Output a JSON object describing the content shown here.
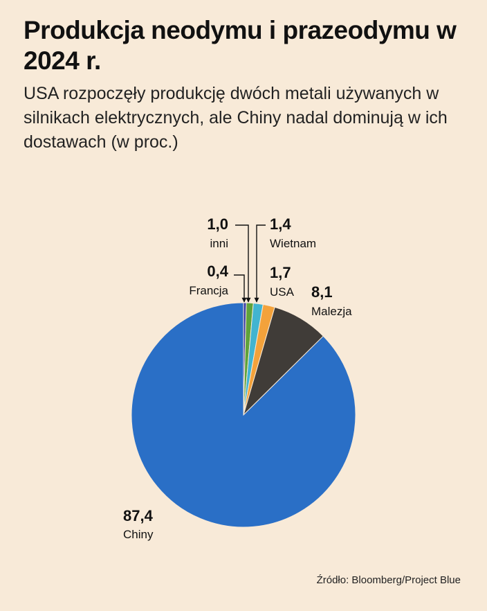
{
  "title": "Produkcja neodymu i prazeodymu w 2024 r.",
  "subtitle": "USA rozpoczęły produkcję dwóch metali używanych w silnikach elektrycznych, ale Chiny nadal dominują w ich dostawach (w proc.)",
  "source": "Źródło: Bloomberg/Project Blue",
  "chart_data": {
    "type": "pie",
    "title": "Produkcja neodymu i prazeodymu w 2024 r.",
    "subtitle": "USA rozpoczęły produkcję dwóch metali używanych w silnikach elektrycznych, ale Chiny nadal dominują w ich dostawach (w proc.)",
    "unit": "proc.",
    "start": "top, clockwise",
    "slices": [
      {
        "label": "Francja",
        "value": 0.4,
        "value_label": "0,4",
        "color": "#3b3fa8"
      },
      {
        "label": "inni",
        "value": 1.0,
        "value_label": "1,0",
        "color": "#5fa33a"
      },
      {
        "label": "Wietnam",
        "value": 1.4,
        "value_label": "1,4",
        "color": "#42b4d0"
      },
      {
        "label": "USA",
        "value": 1.7,
        "value_label": "1,7",
        "color": "#f3a23b"
      },
      {
        "label": "Malezja",
        "value": 8.1,
        "value_label": "8,1",
        "color": "#403c38"
      },
      {
        "label": "Chiny",
        "value": 87.4,
        "value_label": "87,4",
        "color": "#2a6fc6"
      }
    ]
  }
}
